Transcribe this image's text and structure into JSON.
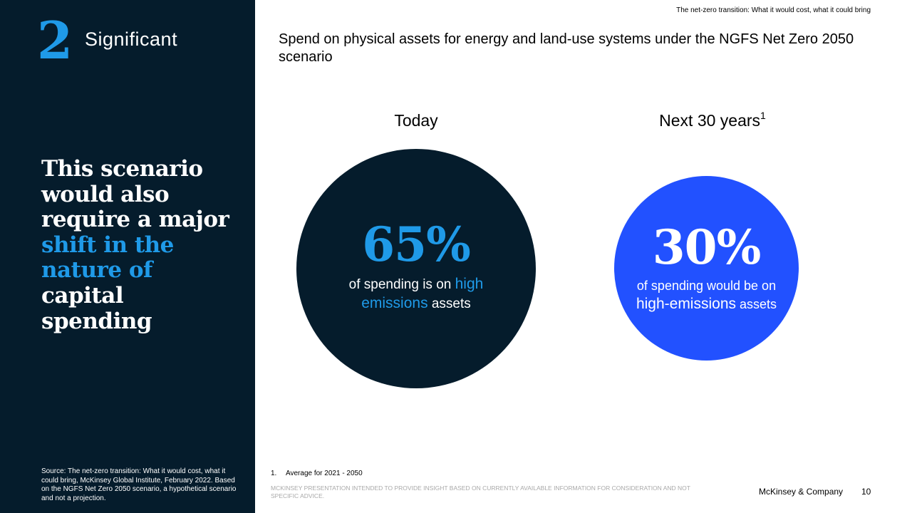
{
  "sidebar": {
    "section_number": "2",
    "section_label": "Significant",
    "headline": {
      "line1": "This scenario",
      "line2": "would also",
      "line3": "require a major",
      "accent1": "shift in the",
      "accent2": "nature of",
      "line4": "capital",
      "line5": "spending"
    },
    "source": "Source: The net-zero transition: What it would cost, what it could bring, McKinsey Global Institute, February 2022. Based on the NGFS Net Zero 2050 scenario, a hypothetical scenario and not a projection."
  },
  "header": {
    "doc_title": "The net-zero transition: What it would cost, what it could bring"
  },
  "main": {
    "title": "Spend on physical assets for energy and land-use systems under the NGFS Net Zero 2050 scenario",
    "today": {
      "label": "Today",
      "value": "65%",
      "desc_pre": "of spending is on",
      "desc_hl": "high emissions",
      "desc_post": "assets"
    },
    "next": {
      "label": "Next 30 years",
      "label_sup": "1",
      "value": "30%",
      "desc_pre": "of spending would be on",
      "desc_hl": "high-emissions",
      "desc_post": "assets"
    }
  },
  "footer": {
    "footnote_num": "1.",
    "footnote_text": "Average for 2021 - 2050",
    "disclaimer": "McKinsey presentation intended to provide insight based on currently available information for consideration and not specific advice.",
    "brand": "McKinsey & Company",
    "page_number": "10"
  },
  "colors": {
    "navy": "#051c2c",
    "cyan": "#1f9ae8",
    "electric_blue": "#2251ff"
  }
}
